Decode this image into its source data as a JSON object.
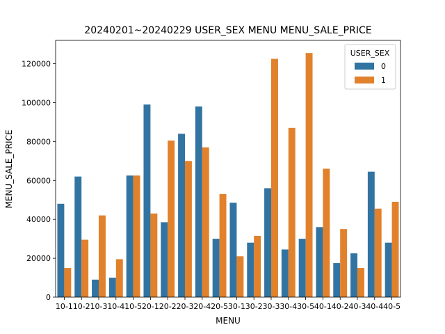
{
  "chart_data": {
    "type": "bar",
    "title": "20240201~20240229 USER_SEX MENU   MENU_SALE_PRICE",
    "xlabel": "MENU",
    "ylabel": "MENU_SALE_PRICE",
    "ylim": [
      0,
      132000
    ],
    "yticks": [
      0,
      20000,
      40000,
      60000,
      80000,
      100000,
      120000
    ],
    "ytick_labels": [
      "0",
      "20000",
      "40000",
      "60000",
      "80000",
      "100000",
      "120000"
    ],
    "grid": false,
    "legend": {
      "title": "USER_SEX",
      "position": "top-right"
    },
    "categories": [
      "10-1",
      "10-2",
      "10-3",
      "10-4",
      "10-5",
      "20-1",
      "20-2",
      "20-3",
      "20-4",
      "20-5",
      "30-1",
      "30-2",
      "30-3",
      "30-4",
      "30-5",
      "40-1",
      "40-2",
      "40-3",
      "40-4",
      "40-5"
    ],
    "series": [
      {
        "name": "0",
        "color": "#3274a1",
        "values": [
          48000,
          62000,
          9000,
          10000,
          62500,
          99000,
          38500,
          84000,
          98000,
          30000,
          48500,
          28000,
          56000,
          24500,
          30000,
          36000,
          17500,
          22500,
          64500,
          28000
        ]
      },
      {
        "name": "1",
        "color": "#e1812c",
        "values": [
          15000,
          29500,
          42000,
          19500,
          62500,
          43000,
          80500,
          70000,
          77000,
          53000,
          21000,
          31500,
          122500,
          87000,
          125500,
          66000,
          35000,
          15000,
          45500,
          49000
        ]
      }
    ]
  }
}
